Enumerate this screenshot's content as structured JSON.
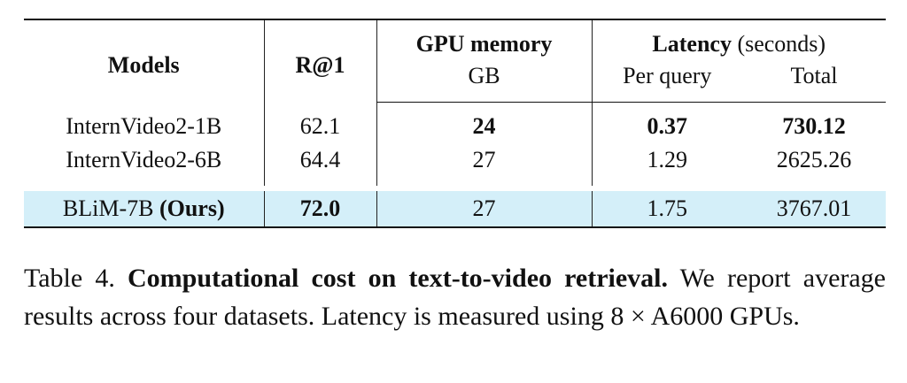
{
  "table": {
    "header": {
      "models": "Models",
      "r1": "R@1",
      "gpu": "GPU memory",
      "gpu_unit": "GB",
      "latency": "Latency",
      "latency_unit": "(seconds)",
      "per_query": "Per query",
      "total": "Total"
    },
    "rows": [
      [
        "InternVideo2-1B",
        "62.1",
        "24",
        "0.37",
        "730.12"
      ],
      [
        "InternVideo2-6B",
        "64.4",
        "27",
        "1.29",
        "2625.26"
      ]
    ],
    "ours": {
      "model": "BLiM-7B",
      "tag": "(Ours)",
      "cells": [
        "72.0",
        "27",
        "1.75",
        "3767.01"
      ]
    }
  },
  "caption": {
    "label": "Table 4.",
    "title": "Computational cost on text-to-video retrieval.",
    "text": "We report average results across four datasets. Latency is measured using 8 × A6000 GPUs."
  }
}
